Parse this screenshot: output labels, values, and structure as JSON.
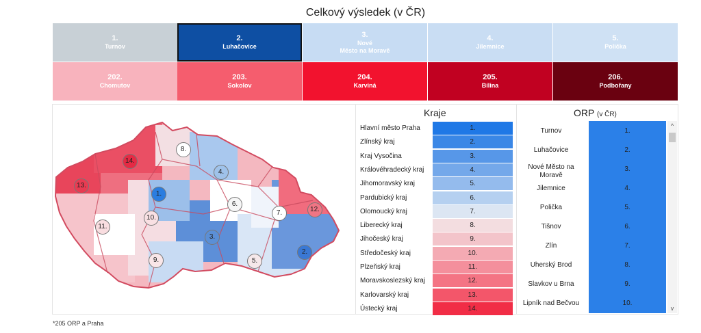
{
  "title": "Celkový výsledek (v ČR)",
  "top_tiles": [
    {
      "rank": "1.",
      "name": "Turnov",
      "color": "#c8d0d6",
      "selected": false
    },
    {
      "rank": "2.",
      "name": "Luhačovice",
      "color": "#0e4fa3",
      "selected": true
    },
    {
      "rank": "3.",
      "name": "Nové\nMěsto na Moravě",
      "color": "#c7dcf3",
      "selected": false
    },
    {
      "rank": "4.",
      "name": "Jilemnice",
      "color": "#c9ddf3",
      "selected": false
    },
    {
      "rank": "5.",
      "name": "Polička",
      "color": "#cfe1f4",
      "selected": false
    }
  ],
  "bottom_tiles": [
    {
      "rank": "202.",
      "name": "Chomutov",
      "color": "#f8b3bd"
    },
    {
      "rank": "203.",
      "name": "Sokolov",
      "color": "#f55d6e"
    },
    {
      "rank": "204.",
      "name": "Karviná",
      "color": "#f2122e"
    },
    {
      "rank": "205.",
      "name": "Bílina",
      "color": "#c10121"
    },
    {
      "rank": "206.",
      "name": "Podbořany",
      "color": "#6a0110"
    }
  ],
  "map_markers": [
    {
      "label": "1.",
      "color": "#2a7de0"
    },
    {
      "label": "2.",
      "color": "#3a78d4"
    },
    {
      "label": "3.",
      "color": "#5b8fd6"
    },
    {
      "label": "4.",
      "color": "#9fc2ea"
    },
    {
      "label": "5.",
      "color": "#f6e8ea"
    },
    {
      "label": "6.",
      "color": "#f6f6f6"
    },
    {
      "label": "7.",
      "color": "#ffffff"
    },
    {
      "label": "8.",
      "color": "#ffffff"
    },
    {
      "label": "9.",
      "color": "#f9e6e8"
    },
    {
      "label": "10.",
      "color": "#f9e0e3"
    },
    {
      "label": "11.",
      "color": "#f9dde0"
    },
    {
      "label": "12.",
      "color": "#f07584"
    },
    {
      "label": "13.",
      "color": "#e83b52"
    },
    {
      "label": "14.",
      "color": "#e52a44"
    }
  ],
  "kraje": {
    "heading": "Kraje",
    "rows": [
      {
        "name": "Hlavní město Praha",
        "rank": "1.",
        "color": "#1f78e6"
      },
      {
        "name": "Zlínský kraj",
        "rank": "2.",
        "color": "#3a87e6"
      },
      {
        "name": "Kraj Vysočina",
        "rank": "3.",
        "color": "#5797e8"
      },
      {
        "name": "Královéhradecký kraj",
        "rank": "4.",
        "color": "#74a8ea"
      },
      {
        "name": "Jihomoravský kraj",
        "rank": "5.",
        "color": "#94bbed"
      },
      {
        "name": "Pardubický kraj",
        "rank": "6.",
        "color": "#b5d0f0"
      },
      {
        "name": "Olomoucký kraj",
        "rank": "7.",
        "color": "#dce6f3"
      },
      {
        "name": "Liberecký kraj",
        "rank": "8.",
        "color": "#f3dde0"
      },
      {
        "name": "Jihočeský kraj",
        "rank": "9.",
        "color": "#f3c4ca"
      },
      {
        "name": "Středočeský kraj",
        "rank": "10.",
        "color": "#f4aab3"
      },
      {
        "name": "Plzeňský kraj",
        "rank": "11.",
        "color": "#f48f9c"
      },
      {
        "name": "Moravskoslezský kraj",
        "rank": "12.",
        "color": "#f47484"
      },
      {
        "name": "Karlovarský kraj",
        "rank": "13.",
        "color": "#f3566a"
      },
      {
        "name": "Ústecký kraj",
        "rank": "14.",
        "color": "#f12d46"
      }
    ]
  },
  "orp": {
    "heading": "ORP",
    "heading_suffix": "(v ČR)",
    "rows": [
      {
        "name": "Turnov",
        "rank": "1."
      },
      {
        "name": "Luhačovice",
        "rank": "2."
      },
      {
        "name": "Nové Město na Moravě",
        "rank": "3."
      },
      {
        "name": "Jilemnice",
        "rank": "4."
      },
      {
        "name": "Polička",
        "rank": "5."
      },
      {
        "name": "Tišnov",
        "rank": "6."
      },
      {
        "name": "Zlín",
        "rank": "7."
      },
      {
        "name": "Uherský Brod",
        "rank": "8."
      },
      {
        "name": "Slavkov u Brna",
        "rank": "9."
      },
      {
        "name": "Lipník nad Bečvou",
        "rank": "10."
      }
    ],
    "scroll_up": "^",
    "scroll_down": "v"
  },
  "footnote": "*205 ORP a Praha"
}
